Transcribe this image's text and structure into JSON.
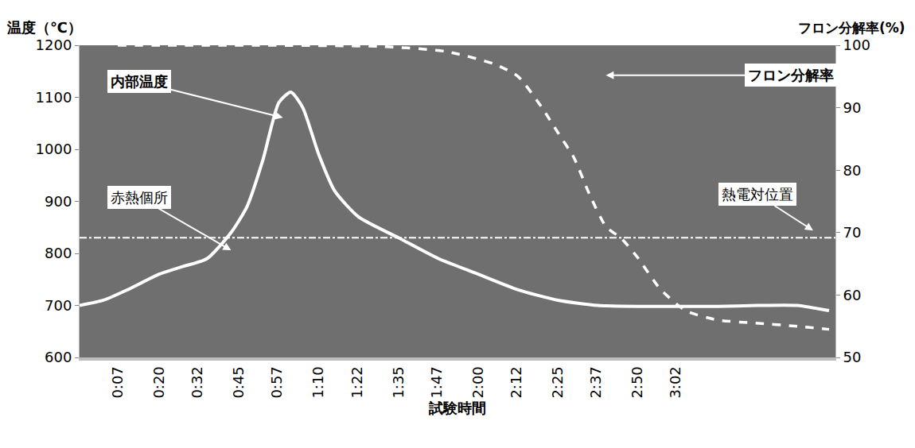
{
  "chart_data": {
    "type": "line",
    "ylabel": "温度（℃）",
    "y2label": "フロン分解率(%)",
    "xlabel": "試験時間",
    "xlim": [
      -5,
      232
    ],
    "xticks": [
      {
        "value": 7,
        "label": "0:07"
      },
      {
        "value": 20,
        "label": "0:20"
      },
      {
        "value": 32,
        "label": "0:32"
      },
      {
        "value": 45,
        "label": "0:45"
      },
      {
        "value": 57,
        "label": "0:57"
      },
      {
        "value": 70,
        "label": "1:10"
      },
      {
        "value": 82,
        "label": "1:22"
      },
      {
        "value": 95,
        "label": "1:35"
      },
      {
        "value": 107,
        "label": "1:47"
      },
      {
        "value": 120,
        "label": "2:00"
      },
      {
        "value": 132,
        "label": "2:12"
      },
      {
        "value": 145,
        "label": "2:25"
      },
      {
        "value": 157,
        "label": "2:37"
      },
      {
        "value": 170,
        "label": "2:50"
      },
      {
        "value": 182,
        "label": "3:02"
      }
    ],
    "ylim": [
      600,
      1200
    ],
    "yticks": [
      600,
      700,
      800,
      900,
      1000,
      1100,
      1200
    ],
    "y2lim": [
      50,
      100
    ],
    "y2ticks": [
      50,
      60,
      70,
      80,
      90,
      100
    ],
    "grid": false,
    "series": [
      {
        "name": "内部温度",
        "color": "#ffffff",
        "line_style": "solid",
        "x": [
          -5,
          2.5,
          10,
          20,
          27.5,
          35,
          42.5,
          47.5,
          52.5,
          57.5,
          61.25,
          65,
          70,
          75,
          82.5,
          95,
          107.5,
          120,
          132.5,
          145,
          157.5,
          170,
          182.5,
          195,
          207.5,
          220,
          230
        ],
        "values": [
          700,
          710,
          730,
          760,
          775,
          790,
          840,
          890,
          980,
          1090,
          1110,
          1080,
          990,
          920,
          870,
          830,
          790,
          760,
          730,
          710,
          700,
          698,
          698,
          698,
          700,
          700,
          690
        ],
        "callout": {
          "x": 13.75,
          "y": 1130,
          "arrow_x": 58.75,
          "arrow_y": 1061
        }
      },
      {
        "name": "フロン分解率",
        "color": "#ffffff",
        "line_style": "dash",
        "axis": "y2",
        "x": [
          7,
          50,
          90,
          110,
          125,
          132.5,
          140,
          145,
          150,
          155,
          160,
          165,
          170,
          177,
          185,
          195,
          207,
          220,
          230
        ],
        "values": [
          100,
          100,
          99.8,
          99,
          97,
          95,
          90,
          86,
          82,
          76,
          71,
          69,
          66,
          61,
          57.5,
          56,
          55.5,
          55,
          54.5
        ],
        "callout": {
          "x": 218,
          "y": 95.2,
          "arrow_x": 160,
          "arrow_y": 95.2
        }
      }
    ],
    "annotations": [
      {
        "text": "赤熱個所",
        "x": 13.75,
        "y": 908,
        "arrow_x": 42.5,
        "arrow_y": 806
      }
    ],
    "reference_lines": [
      {
        "y": 830,
        "text": "熱電対位置",
        "color": "#ffffff",
        "line_style": "dashdot",
        "label_x": 207.5,
        "label_y": 913,
        "arrow_x": 225,
        "arrow_y": 844
      }
    ]
  }
}
